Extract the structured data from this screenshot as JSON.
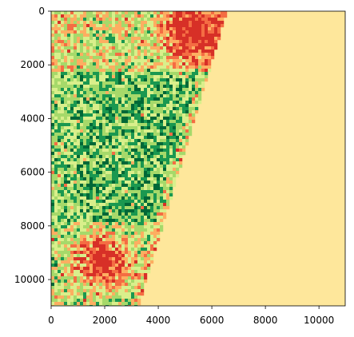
{
  "chart_data": {
    "type": "heatmap",
    "title": "",
    "xlabel": "",
    "ylabel": "",
    "xlim": [
      0,
      10980
    ],
    "ylim": [
      10980,
      0
    ],
    "x_ticks": [
      0,
      2000,
      4000,
      6000,
      8000,
      10000
    ],
    "y_ticks": [
      0,
      2000,
      4000,
      6000,
      8000,
      10000
    ],
    "x_tick_labels": [
      "0",
      "2000",
      "4000",
      "6000",
      "8000",
      "10000"
    ],
    "y_tick_labels": [
      "0",
      "2000",
      "4000",
      "6000",
      "8000",
      "10000"
    ],
    "colormap": "RdYlGn",
    "colors": {
      "nodata_fill": "#fee79b",
      "dense_vegetation": "#006837",
      "medium_vegetation": "#1a9850",
      "light_vegetation": "#a6d96a",
      "sparse_vegetation": "#d9ef8b",
      "bare_soil": "#fdae61",
      "urban": "#f46d43",
      "urban_core": "#d73027",
      "axis": "#000000"
    },
    "valid_data_edge": [
      {
        "y": 0,
        "x": 6500
      },
      {
        "y": 10980,
        "x": 3200
      }
    ],
    "regions": [
      {
        "label": "urban cluster",
        "x": 1900,
        "y": 9300
      },
      {
        "label": "urban cluster",
        "x": 5200,
        "y": 700
      }
    ]
  }
}
